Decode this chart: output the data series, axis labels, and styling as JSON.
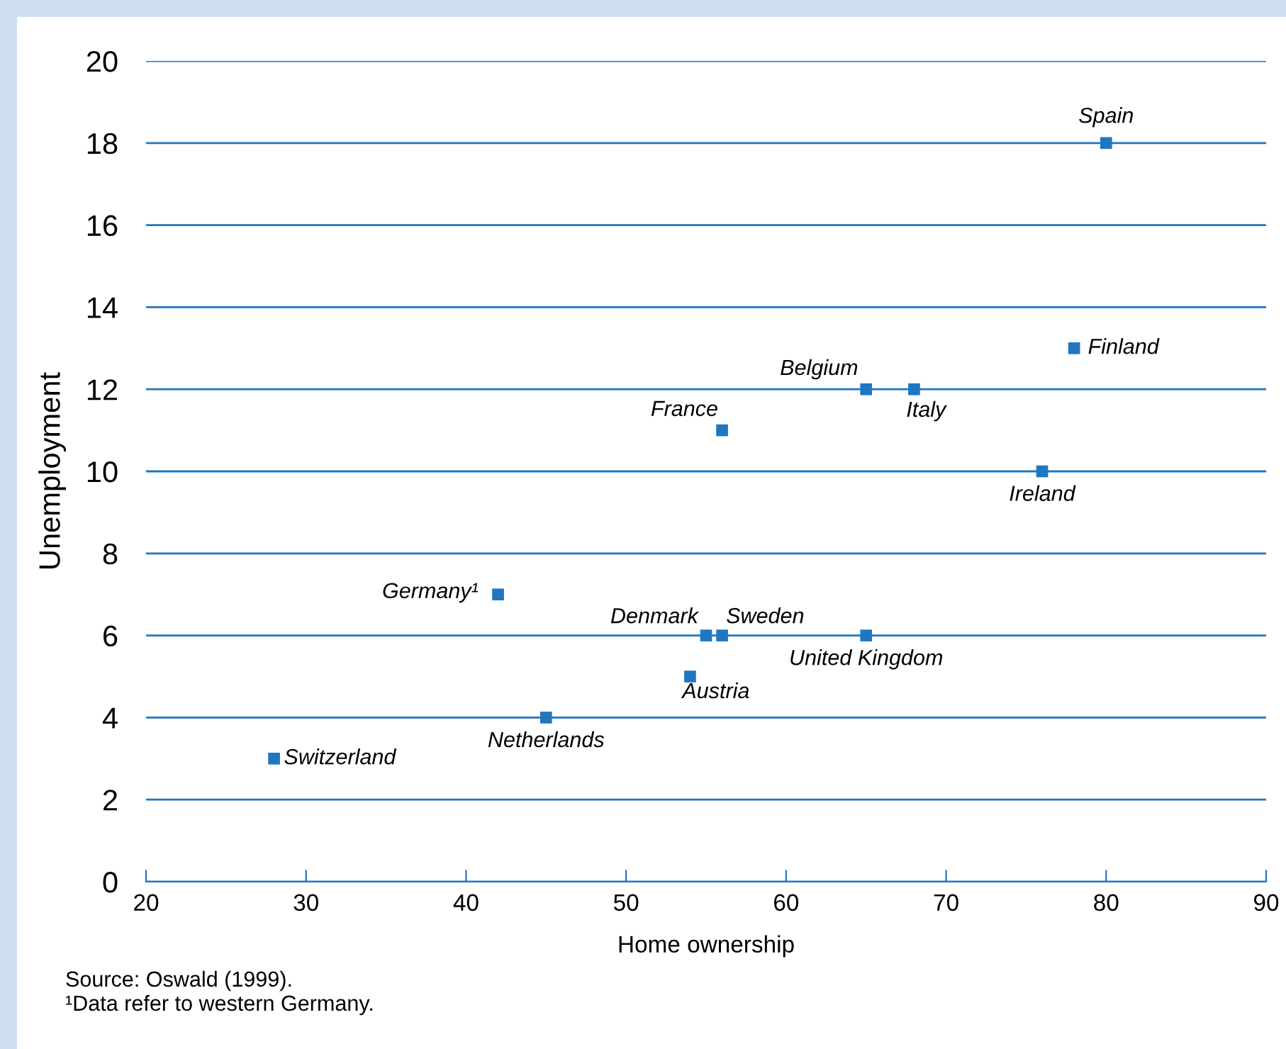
{
  "chart_data": {
    "type": "scatter",
    "xlabel": "Home ownership",
    "ylabel": "Unemployment",
    "series": [
      {
        "color": "#1f77c0",
        "x": [
          80,
          78,
          65,
          68,
          56,
          76,
          42,
          55,
          56,
          65,
          54,
          45,
          28
        ],
        "values": [
          18,
          13,
          12,
          12,
          11,
          10,
          7,
          6,
          6,
          6,
          5,
          4,
          3
        ]
      }
    ],
    "annotations": [
      {
        "text": "Spain",
        "x": 80,
        "y": 18
      },
      {
        "text": "Finland",
        "x": 78,
        "y": 13
      },
      {
        "text": "Belgium",
        "x": 65,
        "y": 12
      },
      {
        "text": "Italy",
        "x": 68,
        "y": 12
      },
      {
        "text": "France",
        "x": 56,
        "y": 11
      },
      {
        "text": "Ireland",
        "x": 76,
        "y": 10
      },
      {
        "text": "Germany¹",
        "x": 42,
        "y": 7
      },
      {
        "text": "Denmark",
        "x": 55,
        "y": 6
      },
      {
        "text": "Sweden",
        "x": 56,
        "y": 6
      },
      {
        "text": "United Kingdom",
        "x": 65,
        "y": 6
      },
      {
        "text": "Austria",
        "x": 54,
        "y": 5
      },
      {
        "text": "Netherlands",
        "x": 45,
        "y": 4
      },
      {
        "text": "Switzerland",
        "x": 28,
        "y": 3
      },
      "Source: Oswald (1999).",
      "¹Data refer to western Germany."
    ],
    "xlim": [
      20,
      90
    ],
    "xticks": [
      20,
      30,
      40,
      50,
      60,
      70,
      80,
      90
    ],
    "ylim": [
      0,
      20
    ],
    "yticks": [
      0,
      2,
      4,
      6,
      8,
      10,
      12,
      14,
      16,
      18,
      20
    ],
    "grid": "y",
    "marker": "square",
    "legend": false
  }
}
